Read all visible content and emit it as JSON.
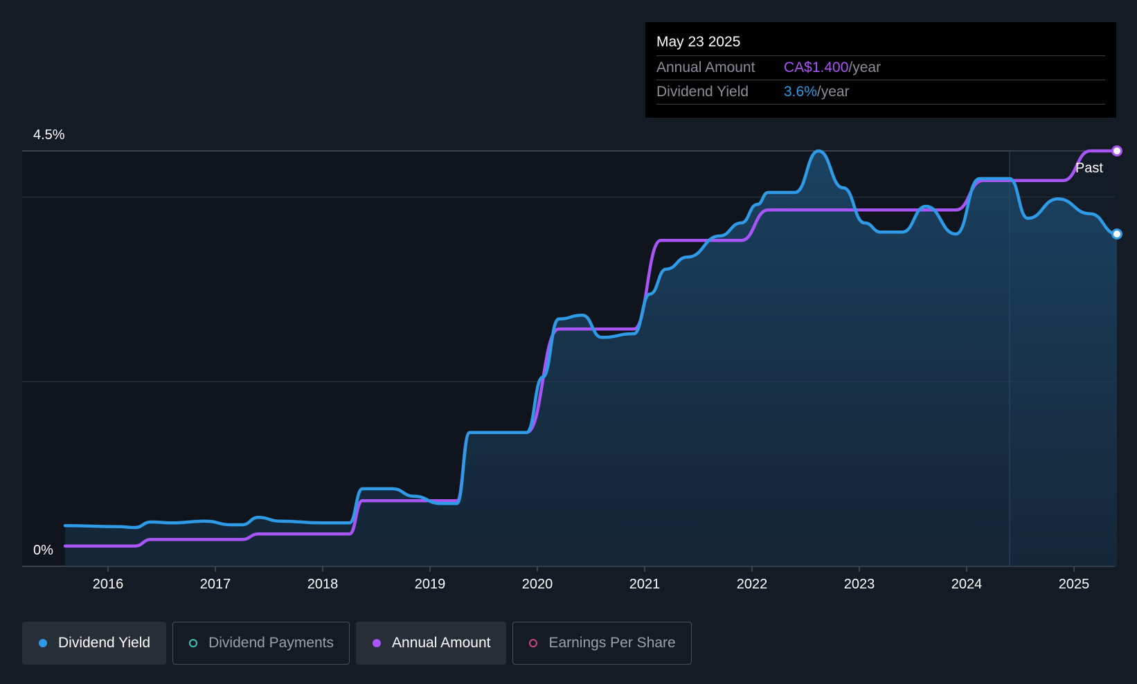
{
  "tooltip": {
    "date": "May 23 2025",
    "rows": [
      {
        "label": "Annual Amount",
        "value": "CA$1.400",
        "unit": "/year"
      },
      {
        "label": "Dividend Yield",
        "value": "3.6%",
        "unit": "/year"
      }
    ]
  },
  "legend": [
    {
      "label": "Dividend Yield",
      "color": "#2f9ae6",
      "active": true,
      "filled": true
    },
    {
      "label": "Dividend Payments",
      "color": "#3cc7b8",
      "active": false,
      "filled": false
    },
    {
      "label": "Annual Amount",
      "color": "#a855f7",
      "active": true,
      "filled": true
    },
    {
      "label": "Earnings Per Share",
      "color": "#d0457f",
      "active": false,
      "filled": false
    }
  ],
  "chart_data": {
    "type": "line",
    "y_tick_labels": [
      "4.5%",
      "0%"
    ],
    "ylim": [
      0,
      4.5
    ],
    "xlim": [
      2015.6,
      2025.4
    ],
    "x_ticks": [
      2016,
      2017,
      2018,
      2019,
      2020,
      2021,
      2022,
      2023,
      2024,
      2025
    ],
    "past_label": "Past",
    "past_start": 2024.4,
    "grid": true,
    "colors": {
      "dividend_yield": "#2f9ae6",
      "annual_amount": "#a855f7"
    },
    "series": [
      {
        "name": "Dividend Yield",
        "points": [
          [
            2015.6,
            0.44
          ],
          [
            2016.1,
            0.43
          ],
          [
            2016.25,
            0.42
          ],
          [
            2016.4,
            0.48
          ],
          [
            2016.6,
            0.47
          ],
          [
            2016.9,
            0.49
          ],
          [
            2017.15,
            0.45
          ],
          [
            2017.25,
            0.45
          ],
          [
            2017.4,
            0.53
          ],
          [
            2017.6,
            0.49
          ],
          [
            2018.0,
            0.47
          ],
          [
            2018.25,
            0.47
          ],
          [
            2018.37,
            0.84
          ],
          [
            2018.65,
            0.84
          ],
          [
            2018.85,
            0.76
          ],
          [
            2019.1,
            0.68
          ],
          [
            2019.25,
            0.68
          ],
          [
            2019.37,
            1.45
          ],
          [
            2019.8,
            1.45
          ],
          [
            2019.9,
            1.45
          ],
          [
            2020.05,
            2.05
          ],
          [
            2020.2,
            2.68
          ],
          [
            2020.42,
            2.72
          ],
          [
            2020.6,
            2.48
          ],
          [
            2020.9,
            2.52
          ],
          [
            2021.05,
            2.95
          ],
          [
            2021.2,
            3.22
          ],
          [
            2021.4,
            3.35
          ],
          [
            2021.7,
            3.58
          ],
          [
            2021.9,
            3.72
          ],
          [
            2022.05,
            3.92
          ],
          [
            2022.15,
            4.05
          ],
          [
            2022.4,
            4.05
          ],
          [
            2022.62,
            4.5
          ],
          [
            2022.85,
            4.1
          ],
          [
            2023.05,
            3.72
          ],
          [
            2023.2,
            3.62
          ],
          [
            2023.4,
            3.62
          ],
          [
            2023.62,
            3.9
          ],
          [
            2023.9,
            3.6
          ],
          [
            2024.12,
            4.2
          ],
          [
            2024.4,
            4.2
          ],
          [
            2024.57,
            3.77
          ],
          [
            2024.85,
            3.98
          ],
          [
            2025.15,
            3.82
          ],
          [
            2025.4,
            3.6
          ]
        ]
      },
      {
        "name": "Annual Amount",
        "points": [
          [
            2015.6,
            0.22
          ],
          [
            2016.25,
            0.22
          ],
          [
            2016.4,
            0.29
          ],
          [
            2017.25,
            0.29
          ],
          [
            2017.4,
            0.35
          ],
          [
            2018.25,
            0.35
          ],
          [
            2018.37,
            0.71
          ],
          [
            2019.25,
            0.71
          ],
          [
            2019.37,
            1.45
          ],
          [
            2019.9,
            1.45
          ],
          [
            2020.2,
            2.57
          ],
          [
            2020.9,
            2.57
          ],
          [
            2021.15,
            3.53
          ],
          [
            2021.9,
            3.53
          ],
          [
            2022.15,
            3.86
          ],
          [
            2023.9,
            3.86
          ],
          [
            2024.15,
            4.18
          ],
          [
            2024.9,
            4.18
          ],
          [
            2025.15,
            4.5
          ],
          [
            2025.4,
            4.5
          ]
        ]
      }
    ]
  }
}
